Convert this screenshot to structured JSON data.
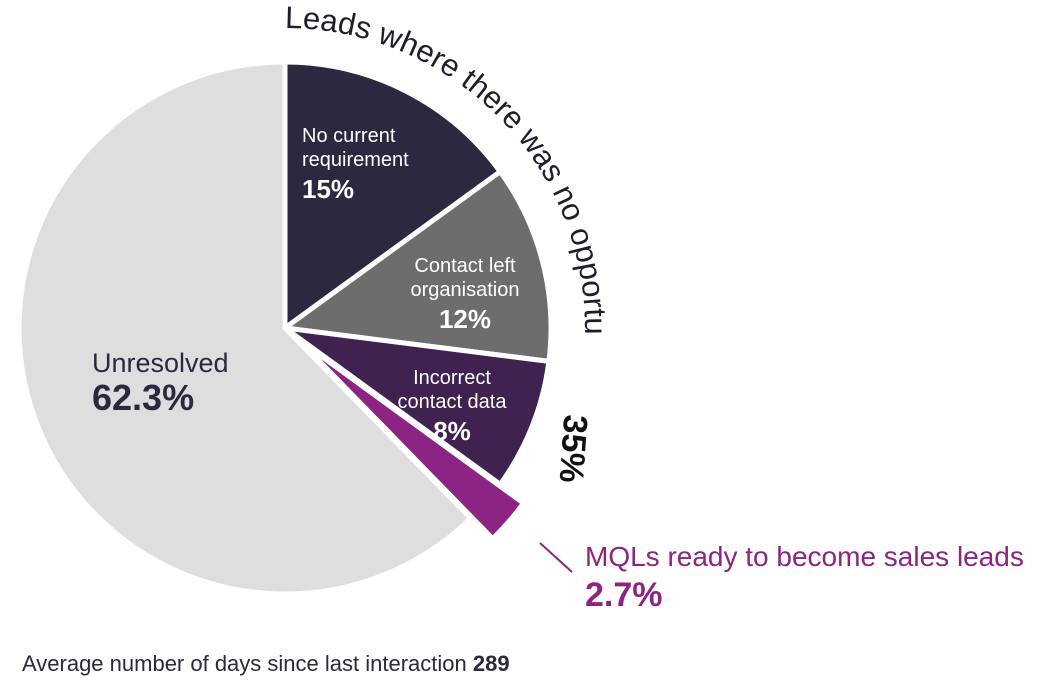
{
  "chart_data": {
    "type": "pie",
    "group_label": "Leads where there was no opportunity",
    "group_total": "35%",
    "slices": [
      {
        "name_lines": [
          "No current",
          "requirement"
        ],
        "value": 15,
        "value_label": "15%",
        "color": "#2b2840",
        "text_color": "#ffffff"
      },
      {
        "name_lines": [
          "Contact left",
          "organisation"
        ],
        "value": 12,
        "value_label": "12%",
        "color": "#6d6d6d",
        "text_color": "#ffffff"
      },
      {
        "name_lines": [
          "Incorrect",
          "contact data"
        ],
        "value": 8,
        "value_label": "8%",
        "color": "#3f2250",
        "text_color": "#ffffff"
      },
      {
        "name_lines": [
          "MQLs ready to become sales leads"
        ],
        "value": 2.7,
        "value_label": "2.7%",
        "color": "#8b2482",
        "text_color": "#8b2482",
        "exploded": true
      },
      {
        "name_lines": [
          "Unresolved"
        ],
        "value": 62.3,
        "value_label": "62.3%",
        "color": "#dedede",
        "text_color": "#2b2840"
      }
    ]
  },
  "footer": {
    "text": "Average number of days since last interaction ",
    "value": "289"
  }
}
